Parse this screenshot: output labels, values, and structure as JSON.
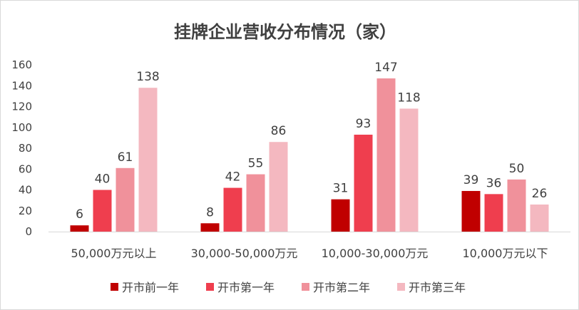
{
  "chart_data": {
    "type": "bar",
    "title": "挂牌企业营收分布情况（家）",
    "xlabel": "",
    "ylabel": "",
    "ylim": [
      0,
      160
    ],
    "yticks": [
      0,
      20,
      40,
      60,
      80,
      100,
      120,
      140,
      160
    ],
    "grid": false,
    "legend_position": "bottom",
    "categories": [
      "50,000万元以上",
      "30,000-50,000万元",
      "10,000-30,000万元",
      "10,000万元以下"
    ],
    "series": [
      {
        "name": "开市前一年",
        "color": "#C00000",
        "values": [
          6,
          8,
          31,
          39
        ]
      },
      {
        "name": "开市第一年",
        "color": "#EF3E4E",
        "values": [
          40,
          42,
          93,
          36
        ]
      },
      {
        "name": "开市第二年",
        "color": "#F0919B",
        "values": [
          61,
          55,
          147,
          50
        ]
      },
      {
        "name": "开市第三年",
        "color": "#F4B8C0",
        "values": [
          138,
          86,
          118,
          26
        ]
      }
    ]
  }
}
